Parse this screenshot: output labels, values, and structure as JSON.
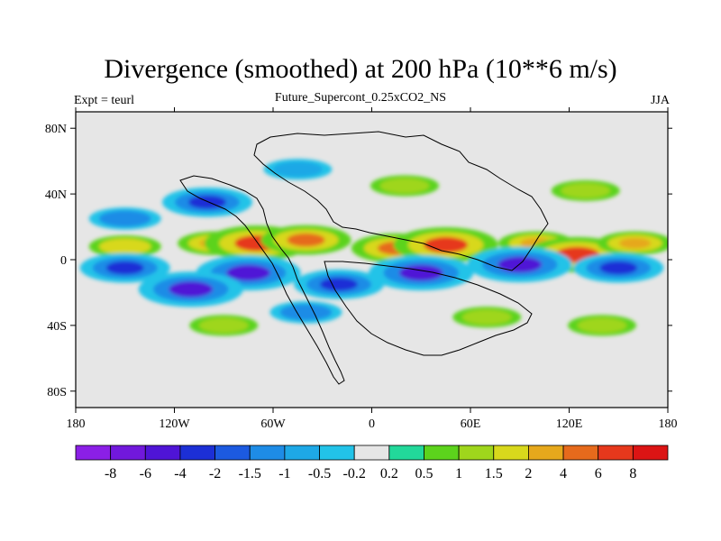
{
  "header": {
    "title": "Divergence (smoothed) at 200 hPa (10**6 m/s)",
    "subtitle": "Future_Supercont_0.25xCO2_NS",
    "left_label": "Expt = teurl",
    "right_label": "JJA"
  },
  "chart_data": {
    "type": "heatmap",
    "title": "Divergence (smoothed) at 200 hPa (10**6 m/s)",
    "subtitle": "Future_Supercont_0.25xCO2_NS",
    "xlim": [
      -180,
      180
    ],
    "ylim": [
      -90,
      90
    ],
    "x_ticks": [
      {
        "value": -180,
        "label": "180"
      },
      {
        "value": -120,
        "label": "120W"
      },
      {
        "value": -60,
        "label": "60W"
      },
      {
        "value": 0,
        "label": "0"
      },
      {
        "value": 60,
        "label": "60E"
      },
      {
        "value": 120,
        "label": "120E"
      },
      {
        "value": 180,
        "label": "180"
      }
    ],
    "y_ticks": [
      {
        "value": 80,
        "label": "80N"
      },
      {
        "value": 40,
        "label": "40N"
      },
      {
        "value": 0,
        "label": "0"
      },
      {
        "value": -40,
        "label": "40S"
      },
      {
        "value": -80,
        "label": "80S"
      }
    ],
    "colorbar": {
      "levels": [
        "-8",
        "-6",
        "-4",
        "-2",
        "-1.5",
        "-1",
        "-0.5",
        "-0.2",
        "0.2",
        "0.5",
        "1",
        "1.5",
        "2",
        "4",
        "6",
        "8"
      ],
      "colors": [
        "#8b1fe6",
        "#7118dc",
        "#4f14d6",
        "#1c2fd6",
        "#1c5ae0",
        "#1e8ce6",
        "#1ea8e6",
        "#22c3e8",
        "#e6e6e6",
        "#22d89a",
        "#5cd31c",
        "#9fd61c",
        "#d8d81c",
        "#e6a81c",
        "#e66a1c",
        "#e6381c",
        "#dc1414"
      ]
    },
    "field": [
      {
        "lon": -150,
        "lat": 25,
        "value": -1.5
      },
      {
        "lon": -100,
        "lat": 35,
        "value": -4
      },
      {
        "lon": -150,
        "lat": 8,
        "value": 1.5
      },
      {
        "lon": -95,
        "lat": 10,
        "value": 2
      },
      {
        "lon": -70,
        "lat": 10,
        "value": 6
      },
      {
        "lon": -40,
        "lat": 12,
        "value": 4
      },
      {
        "lon": 15,
        "lat": 7,
        "value": 4
      },
      {
        "lon": 45,
        "lat": 9,
        "value": 6
      },
      {
        "lon": 100,
        "lat": 10,
        "value": 2
      },
      {
        "lon": 125,
        "lat": 3,
        "value": 6
      },
      {
        "lon": 160,
        "lat": 10,
        "value": 2
      },
      {
        "lon": -150,
        "lat": -5,
        "value": -4
      },
      {
        "lon": -75,
        "lat": -8,
        "value": -6
      },
      {
        "lon": -20,
        "lat": -15,
        "value": -4
      },
      {
        "lon": 30,
        "lat": -8,
        "value": -6
      },
      {
        "lon": 90,
        "lat": -3,
        "value": -6
      },
      {
        "lon": 150,
        "lat": -5,
        "value": -4
      },
      {
        "lon": -110,
        "lat": -18,
        "value": -6
      },
      {
        "lon": -90,
        "lat": -40,
        "value": 1
      },
      {
        "lon": -40,
        "lat": -32,
        "value": -1.5
      },
      {
        "lon": 70,
        "lat": -35,
        "value": 1
      },
      {
        "lon": 140,
        "lat": -40,
        "value": 1
      },
      {
        "lon": -45,
        "lat": 55,
        "value": -1
      },
      {
        "lon": 20,
        "lat": 45,
        "value": 1
      },
      {
        "lon": 130,
        "lat": 42,
        "value": 1
      }
    ]
  }
}
